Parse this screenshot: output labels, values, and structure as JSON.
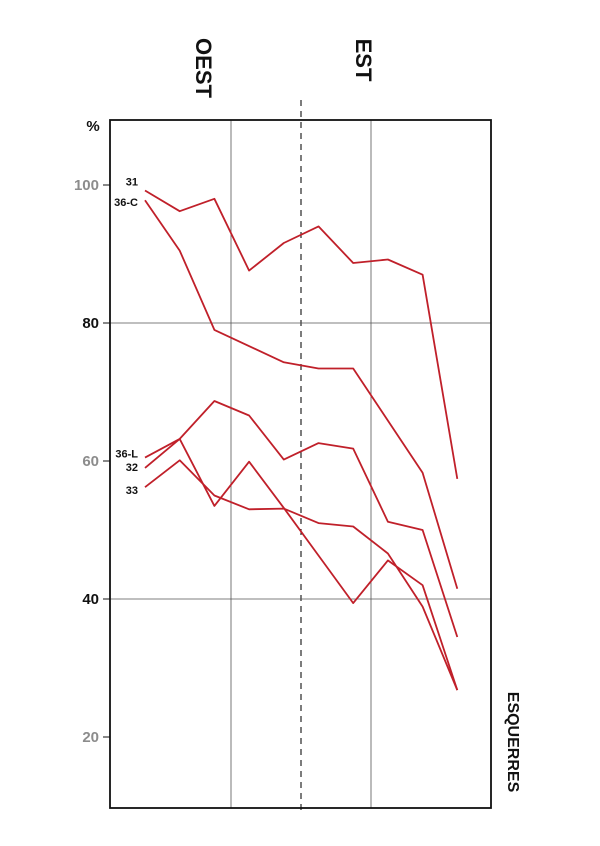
{
  "chart_data": {
    "type": "line",
    "unit_label": "%",
    "region_labels": [
      "OEST",
      "EST"
    ],
    "side_label": "ESQUERRES",
    "ylim": [
      10,
      110
    ],
    "yticks": [
      {
        "value": 100,
        "label": "100",
        "color": "#8c8c8c"
      },
      {
        "value": 80,
        "label": "80",
        "color": "#111111"
      },
      {
        "value": 60,
        "label": "60",
        "color": "#8c8c8c"
      },
      {
        "value": 40,
        "label": "40",
        "color": "#111111"
      },
      {
        "value": 20,
        "label": "20",
        "color": "#8c8c8c"
      }
    ],
    "line_color": "#c0202a",
    "x": [
      1,
      2,
      3,
      4,
      5,
      6,
      7,
      8,
      9,
      10
    ],
    "series": [
      {
        "name": "31",
        "values": [
          99.2,
          96.2,
          98.0,
          87.6,
          91.6,
          94.0,
          88.7,
          89.2,
          87.0,
          57.4
        ]
      },
      {
        "name": "36-C",
        "values": [
          97.8,
          90.5,
          79.0,
          null,
          74.3,
          73.4,
          73.4,
          null,
          58.3,
          41.5
        ]
      },
      {
        "name": "36-L",
        "values": [
          60.5,
          63.2,
          68.7,
          66.6,
          60.2,
          62.6,
          61.8,
          51.2,
          50.0,
          34.5
        ]
      },
      {
        "name": "32",
        "values": [
          59.0,
          63.2,
          53.5,
          59.9,
          53.2,
          46.3,
          39.4,
          45.6,
          42.0,
          26.8
        ]
      },
      {
        "name": "33",
        "values": [
          56.2,
          60.1,
          55.0,
          53.0,
          53.1,
          51.0,
          50.5,
          46.6,
          38.9,
          26.8
        ]
      }
    ]
  }
}
